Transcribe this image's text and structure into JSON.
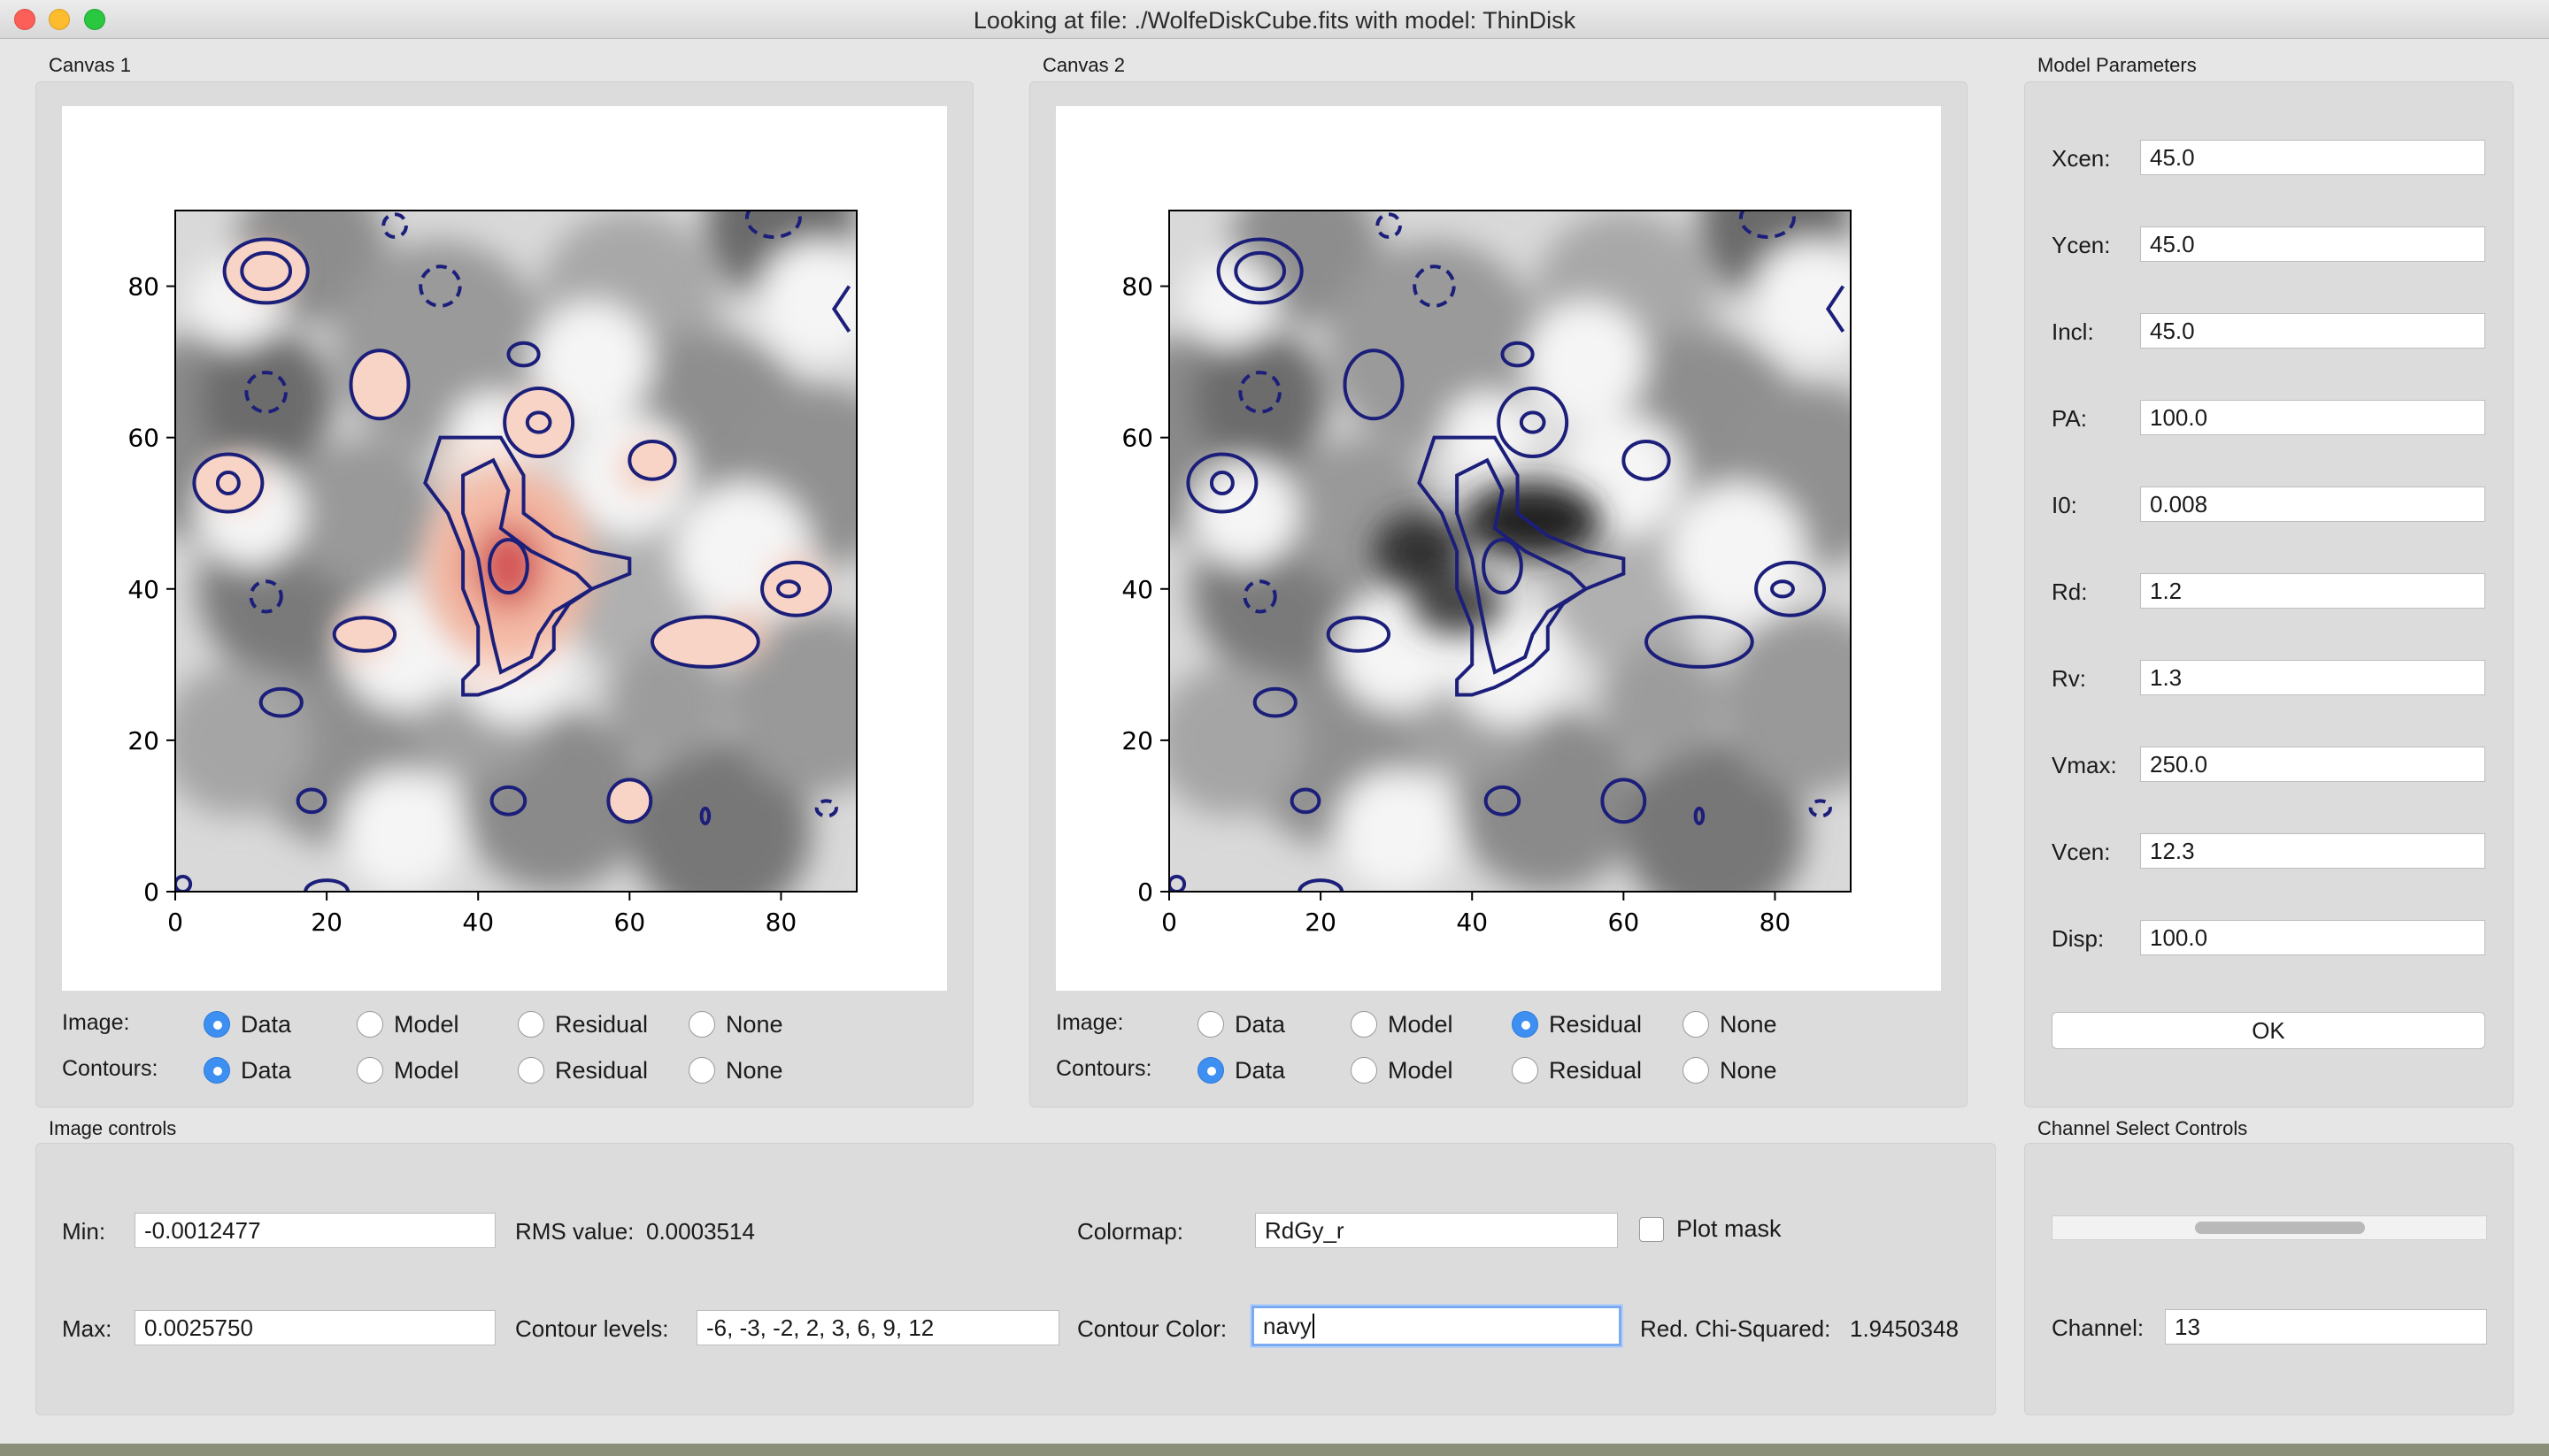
{
  "window": {
    "title": "Looking at file: ./WolfeDiskCube.fits with model: ThinDisk"
  },
  "canvas1": {
    "label": "Canvas 1",
    "x_ticks": [
      "0",
      "20",
      "40",
      "60",
      "80"
    ],
    "y_ticks": [
      "0",
      "20",
      "40",
      "60",
      "80"
    ],
    "image_label": "Image:",
    "contours_label": "Contours:",
    "image_options": [
      "Data",
      "Model",
      "Residual",
      "None"
    ],
    "image_selected": "Data",
    "contour_options": [
      "Data",
      "Model",
      "Residual",
      "None"
    ],
    "contour_selected": "Data"
  },
  "canvas2": {
    "label": "Canvas 2",
    "x_ticks": [
      "0",
      "20",
      "40",
      "60",
      "80"
    ],
    "y_ticks": [
      "0",
      "20",
      "40",
      "60",
      "80"
    ],
    "image_label": "Image:",
    "contours_label": "Contours:",
    "image_options": [
      "Data",
      "Model",
      "Residual",
      "None"
    ],
    "image_selected": "Residual",
    "contour_options": [
      "Data",
      "Model",
      "Residual",
      "None"
    ],
    "contour_selected": "Data"
  },
  "model_params": {
    "label": "Model Parameters",
    "params": [
      {
        "name": "Xcen:",
        "value": "45.0"
      },
      {
        "name": "Ycen:",
        "value": "45.0"
      },
      {
        "name": "Incl:",
        "value": "45.0"
      },
      {
        "name": "PA:",
        "value": "100.0"
      },
      {
        "name": "I0:",
        "value": "0.008"
      },
      {
        "name": "Rd:",
        "value": "1.2"
      },
      {
        "name": "Rv:",
        "value": "1.3"
      },
      {
        "name": "Vmax:",
        "value": "250.0"
      },
      {
        "name": "Vcen:",
        "value": "12.3"
      },
      {
        "name": "Disp:",
        "value": "100.0"
      }
    ],
    "ok_label": "OK"
  },
  "image_controls": {
    "label": "Image controls",
    "min_label": "Min:",
    "min_value": "-0.0012477",
    "max_label": "Max:",
    "max_value": "0.0025750",
    "rms_label": "RMS value:",
    "rms_value": "0.0003514",
    "contour_levels_label": "Contour levels:",
    "contour_levels_value": "-6, -3, -2, 2, 3, 6, 9, 12",
    "colormap_label": "Colormap:",
    "colormap_value": "RdGy_r",
    "plot_mask_label": "Plot mask",
    "contour_color_label": "Contour Color:",
    "contour_color_value": "navy",
    "chi_label": "Red. Chi-Squared:",
    "chi_value": "1.9450348"
  },
  "channel_controls": {
    "label": "Channel Select Controls",
    "channel_label": "Channel:",
    "channel_value": "13",
    "slider_fraction": 0.54
  },
  "colors": {
    "contour": "#1c1f7a",
    "accent": "#3d8ff2"
  }
}
